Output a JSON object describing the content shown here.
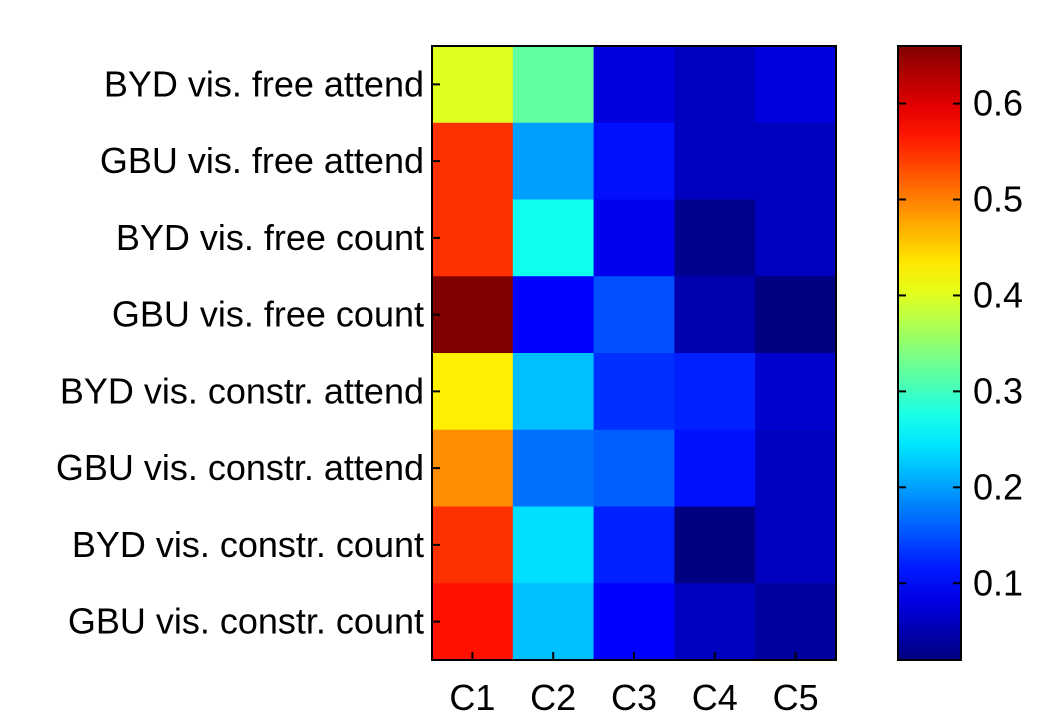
{
  "chart_data": {
    "type": "heatmap",
    "title": "",
    "xlabel": "",
    "ylabel": "",
    "x_categories": [
      "C1",
      "C2",
      "C3",
      "C4",
      "C5"
    ],
    "y_categories": [
      "BYD vis. free attend",
      "GBU vis. free attend",
      "BYD vis. free count",
      "GBU vis. free count",
      "BYD vis. constr. attend",
      "GBU vis. constr. attend",
      "BYD vis. constr. count",
      "GBU vis. constr. count"
    ],
    "values": [
      [
        0.4,
        0.32,
        0.08,
        0.06,
        0.08
      ],
      [
        0.55,
        0.2,
        0.11,
        0.06,
        0.06
      ],
      [
        0.55,
        0.27,
        0.09,
        0.03,
        0.06
      ],
      [
        0.66,
        0.1,
        0.15,
        0.05,
        0.02
      ],
      [
        0.43,
        0.22,
        0.13,
        0.12,
        0.07
      ],
      [
        0.49,
        0.17,
        0.16,
        0.11,
        0.06
      ],
      [
        0.55,
        0.24,
        0.12,
        0.02,
        0.06
      ],
      [
        0.57,
        0.22,
        0.1,
        0.06,
        0.04
      ]
    ],
    "colorbar": {
      "colormap": "jet",
      "min": 0.02,
      "max": 0.66,
      "ticks": [
        0.1,
        0.2,
        0.3,
        0.4,
        0.5,
        0.6
      ],
      "tick_labels": [
        "0.1",
        "0.2",
        "0.3",
        "0.4",
        "0.5",
        "0.6"
      ]
    },
    "legend": "none",
    "grid": false
  }
}
